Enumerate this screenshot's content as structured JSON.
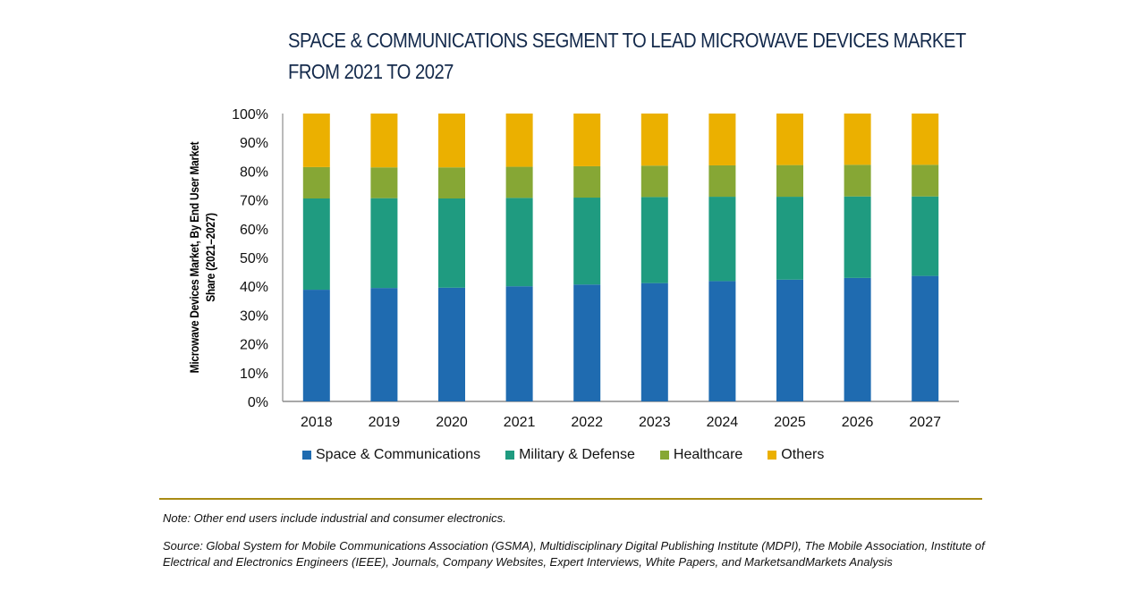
{
  "chart_data": {
    "type": "bar",
    "stacked": true,
    "percent_stacked": true,
    "title": "SPACE & COMMUNICATIONS SEGMENT TO LEAD MICROWAVE DEVICES MARKET FROM 2021 TO 2027",
    "title_lines": [
      "SPACE & COMMUNICATIONS SEGMENT TO LEAD MICROWAVE DEVICES MARKET",
      "FROM 2021 TO 2027"
    ],
    "xlabel": "",
    "ylabel_lines": [
      "Microwave Devices Market, By End User Market",
      "Share (2021–2027)"
    ],
    "ylim": [
      0,
      100
    ],
    "yticks": [
      "0%",
      "10%",
      "20%",
      "30%",
      "40%",
      "50%",
      "60%",
      "70%",
      "80%",
      "90%",
      "100%"
    ],
    "grid": false,
    "legend_position": "bottom",
    "categories": [
      "2018",
      "2019",
      "2020",
      "2021",
      "2022",
      "2023",
      "2024",
      "2025",
      "2026",
      "2027"
    ],
    "series": [
      {
        "name": "Space & Communications",
        "color": "#1f6bb0",
        "values": [
          38.8,
          39.4,
          39.5,
          40.0,
          40.6,
          41.1,
          41.8,
          42.3,
          42.9,
          43.6
        ]
      },
      {
        "name": "Military & Defense",
        "color": "#1f9b80",
        "values": [
          31.7,
          31.2,
          31.0,
          30.7,
          30.2,
          29.9,
          29.3,
          28.8,
          28.3,
          27.6
        ]
      },
      {
        "name": "Healthcare",
        "color": "#86a735",
        "values": [
          10.9,
          10.7,
          10.8,
          10.8,
          10.9,
          10.9,
          10.9,
          11.0,
          11.0,
          11.0
        ]
      },
      {
        "name": "Others",
        "color": "#ebb000",
        "values": [
          18.6,
          18.7,
          18.7,
          18.5,
          18.3,
          18.1,
          18.0,
          17.9,
          17.8,
          17.8
        ]
      }
    ]
  },
  "footer": {
    "note": "Note: Other end users include industrial and consumer electronics.",
    "source": "Source: Global System for Mobile Communications Association (GSMA), Multidisciplinary Digital Publishing Institute (MDPI), The Mobile Association, Institute of Electrical and Electronics Engineers (IEEE), Journals, Company Websites, Expert Interviews, White Papers, and MarketsandMarkets Analysis",
    "rule_color": "#a98b14"
  },
  "colors": {
    "title": "#13294b",
    "axis": "#8c8c8c"
  }
}
